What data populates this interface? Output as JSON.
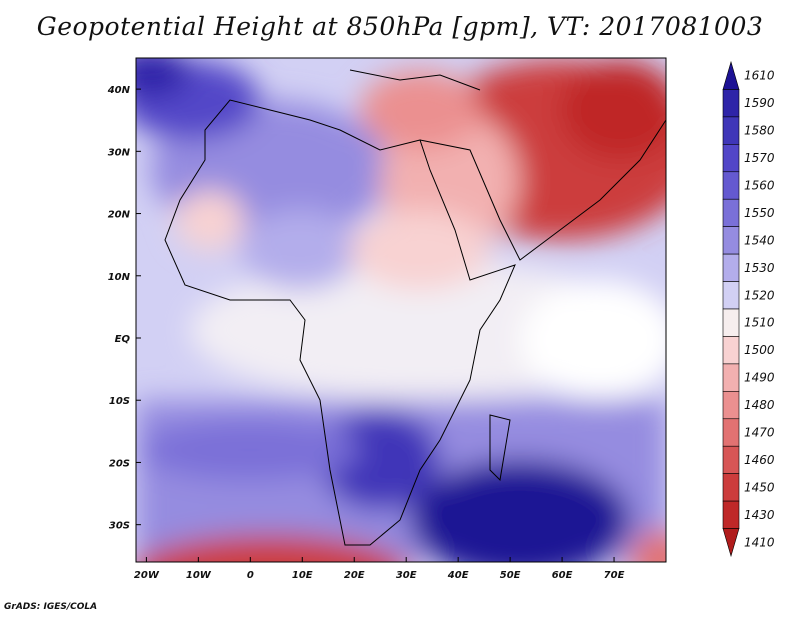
{
  "title": "Geopotential Height at 850hPa [gpm], VT: 2017081003",
  "credit": "GrADS: IGES/COLA",
  "map": {
    "lat_ticks": [
      "40N",
      "30N",
      "20N",
      "10N",
      "EQ",
      "10S",
      "20S",
      "30S"
    ],
    "lon_ticks": [
      "20W",
      "10W",
      "0",
      "10E",
      "20E",
      "30E",
      "40E",
      "50E",
      "60E",
      "70E"
    ],
    "lat_values": [
      40,
      30,
      20,
      10,
      0,
      -10,
      -20,
      -30
    ],
    "lon_values": [
      -20,
      -10,
      0,
      10,
      20,
      30,
      40,
      50,
      60,
      70
    ],
    "lon_range": [
      -22,
      80
    ],
    "lat_range": [
      -36,
      45
    ]
  },
  "colorbar": {
    "levels": [
      "1610",
      "1590",
      "1580",
      "1570",
      "1560",
      "1550",
      "1540",
      "1530",
      "1520",
      "1510",
      "1500",
      "1490",
      "1480",
      "1470",
      "1460",
      "1450",
      "1430",
      "1410"
    ],
    "colors": [
      "#1d1294",
      "#2e24a8",
      "#3f36b8",
      "#5246c8",
      "#6459d0",
      "#7a70d8",
      "#958ce0",
      "#b3adeb",
      "#d2d0f4",
      "#f6eeee",
      "#f8d2d2",
      "#f2b0b0",
      "#eb9090",
      "#e27272",
      "#d75656",
      "#cc3c3c",
      "#bf2828",
      "#b01c1c"
    ]
  }
}
